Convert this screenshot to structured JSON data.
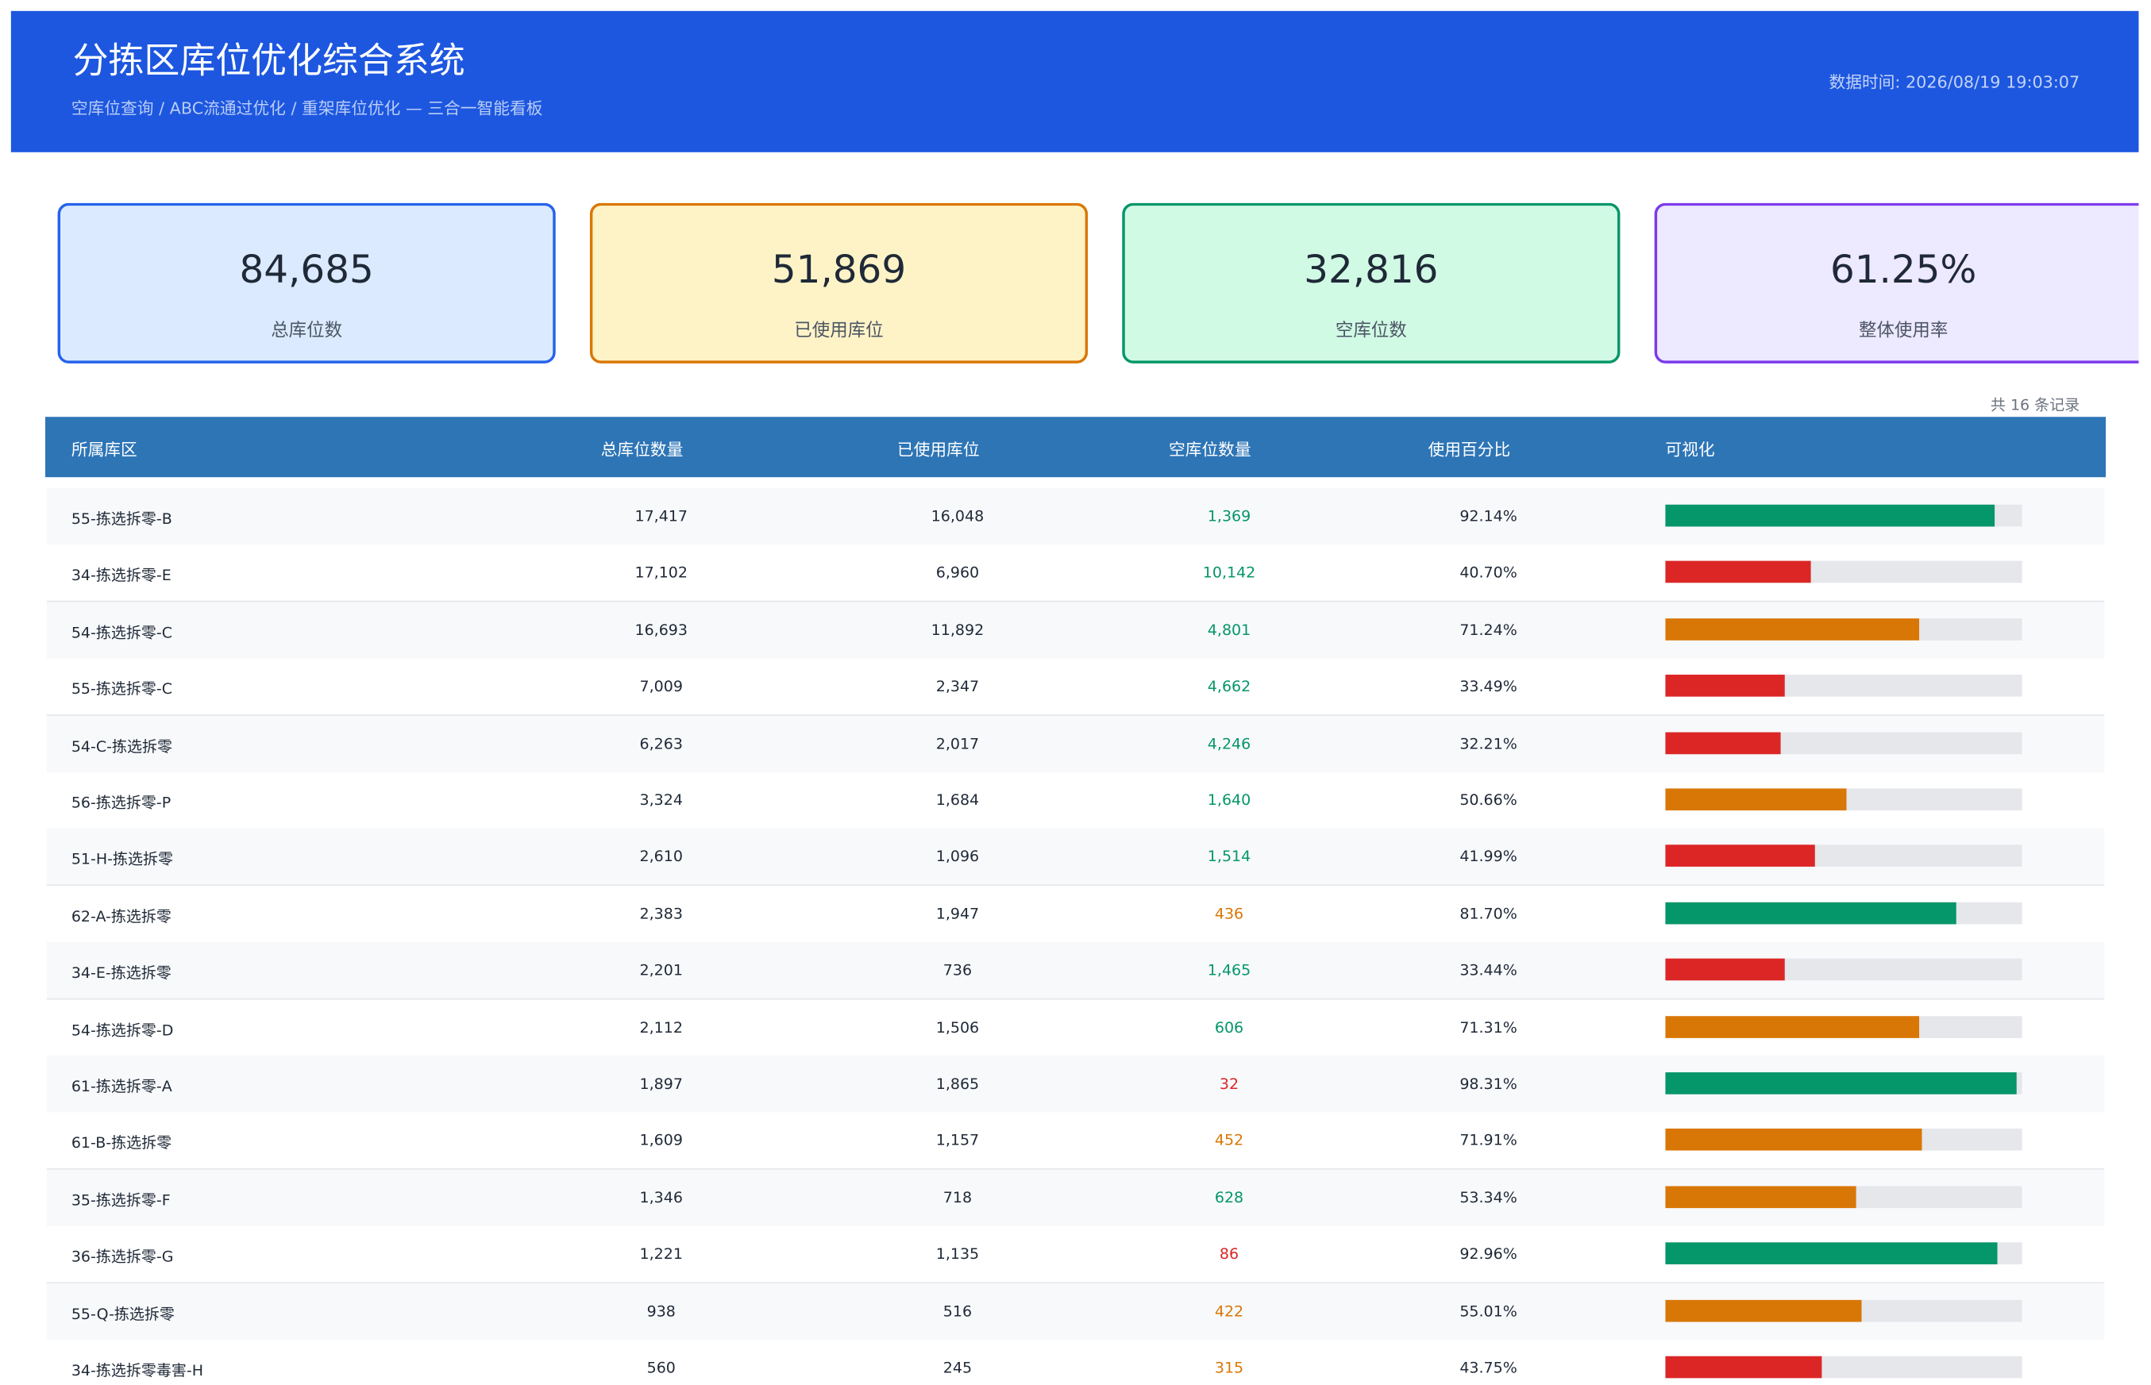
{
  "header": {
    "title": "分拣区库位优化综合系统",
    "breadcrumb": "空库位查询 / ABC流通过优化 / 重架库位优化 — 三合一智能看板",
    "timestamp": "数据时间: 2026/08/19 19:03:07"
  },
  "cards": [
    {
      "value": "84,685",
      "label": "总库位数"
    },
    {
      "value": "51,869",
      "label": "已使用库位"
    },
    {
      "value": "32,816",
      "label": "空库位数"
    },
    {
      "value": "61.25%",
      "label": "整体使用率"
    }
  ],
  "table": {
    "record_count": "共 16 条记录",
    "columns": [
      "所属库区",
      "总库位数量",
      "已使用库位",
      "空库位数量",
      "使用百分比",
      "可视化"
    ],
    "rows": [
      {
        "zone": "55-拣选拆零-B",
        "total": "17,417",
        "used": "16,048",
        "free": "1,369",
        "pct": 92.14,
        "pct_label": "92.14%"
      },
      {
        "zone": "34-拣选拆零-E",
        "total": "17,102",
        "used": "6,960",
        "free": "10,142",
        "pct": 40.7,
        "pct_label": "40.70%"
      },
      {
        "zone": "54-拣选拆零-C",
        "total": "16,693",
        "used": "11,892",
        "free": "4,801",
        "pct": 71.24,
        "pct_label": "71.24%"
      },
      {
        "zone": "55-拣选拆零-C",
        "total": "7,009",
        "used": "2,347",
        "free": "4,662",
        "pct": 33.49,
        "pct_label": "33.49%"
      },
      {
        "zone": "54-C-拣选拆零",
        "total": "6,263",
        "used": "2,017",
        "free": "4,246",
        "pct": 32.21,
        "pct_label": "32.21%"
      },
      {
        "zone": "56-拣选拆零-P",
        "total": "3,324",
        "used": "1,684",
        "free": "1,640",
        "pct": 50.66,
        "pct_label": "50.66%"
      },
      {
        "zone": "51-H-拣选拆零",
        "total": "2,610",
        "used": "1,096",
        "free": "1,514",
        "pct": 41.99,
        "pct_label": "41.99%"
      },
      {
        "zone": "62-A-拣选拆零",
        "total": "2,383",
        "used": "1,947",
        "free": "436",
        "pct": 81.7,
        "pct_label": "81.70%"
      },
      {
        "zone": "34-E-拣选拆零",
        "total": "2,201",
        "used": "736",
        "free": "1,465",
        "pct": 33.44,
        "pct_label": "33.44%"
      },
      {
        "zone": "54-拣选拆零-D",
        "total": "2,112",
        "used": "1,506",
        "free": "606",
        "pct": 71.31,
        "pct_label": "71.31%"
      },
      {
        "zone": "61-拣选拆零-A",
        "total": "1,897",
        "used": "1,865",
        "free": "32",
        "pct": 98.31,
        "pct_label": "98.31%"
      },
      {
        "zone": "61-B-拣选拆零",
        "total": "1,609",
        "used": "1,157",
        "free": "452",
        "pct": 71.91,
        "pct_label": "71.91%"
      },
      {
        "zone": "35-拣选拆零-F",
        "total": "1,346",
        "used": "718",
        "free": "628",
        "pct": 53.34,
        "pct_label": "53.34%"
      },
      {
        "zone": "36-拣选拆零-G",
        "total": "1,221",
        "used": "1,135",
        "free": "86",
        "pct": 92.96,
        "pct_label": "92.96%"
      },
      {
        "zone": "55-Q-拣选拆零",
        "total": "938",
        "used": "516",
        "free": "422",
        "pct": 55.01,
        "pct_label": "55.01%"
      },
      {
        "zone": "34-拣选拆零毒害-H",
        "total": "560",
        "used": "245",
        "free": "315",
        "pct": 43.75,
        "pct_label": "43.75%"
      }
    ]
  }
}
